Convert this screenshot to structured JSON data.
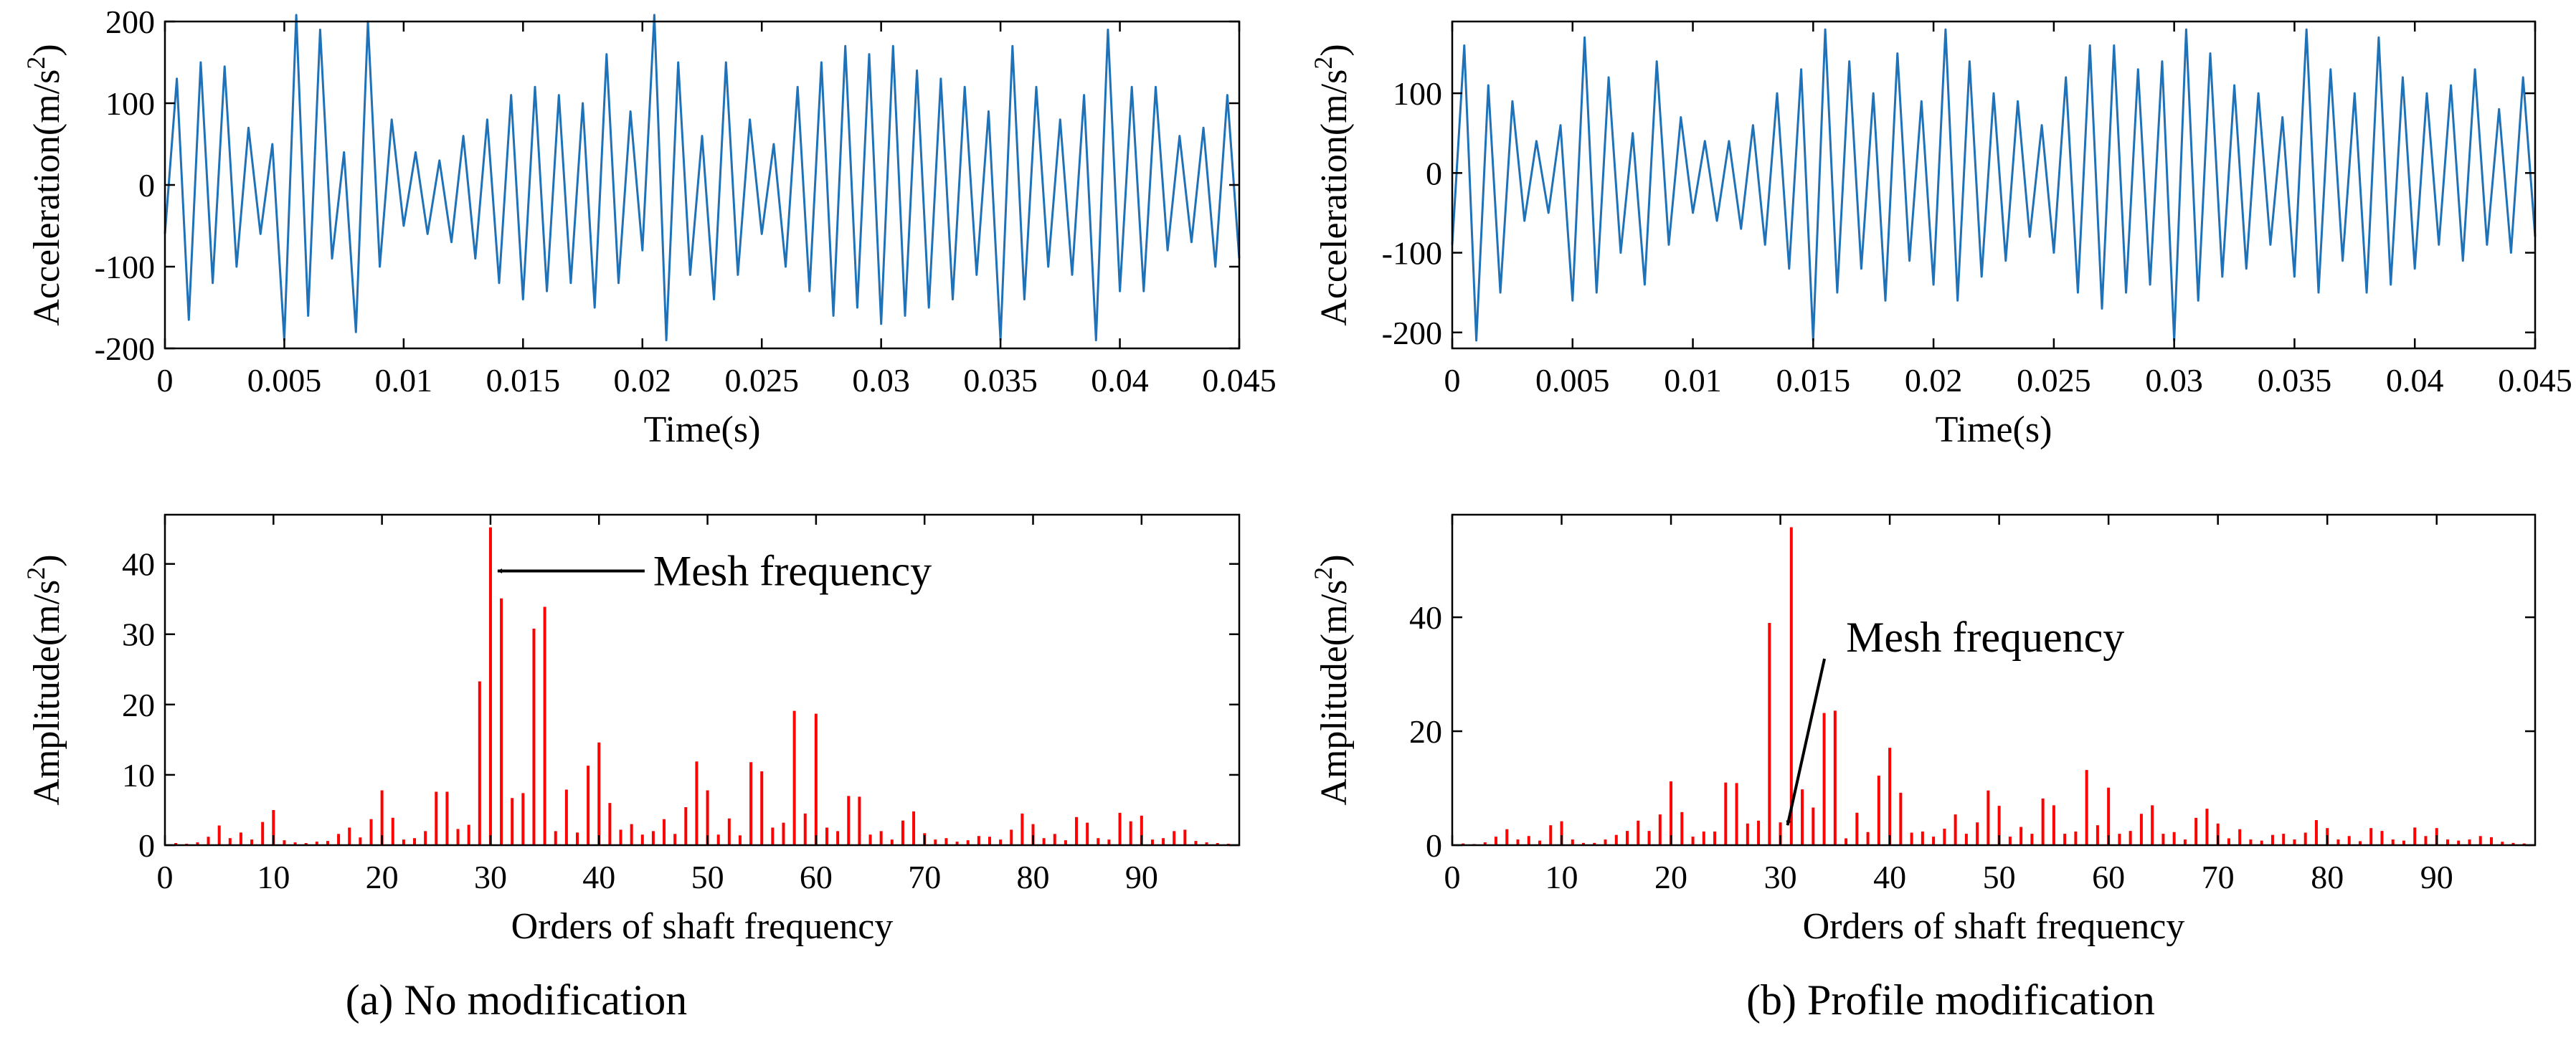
{
  "figure": {
    "captions": [
      "(a) No modification",
      "(b) Profile modification"
    ],
    "colors": {
      "time_line": "#1f72b8",
      "spectrum_bar": "#ff0000",
      "axis": "#000000"
    }
  },
  "chart_data": [
    {
      "id": "a-time",
      "type": "line",
      "title": "",
      "xlabel": "Time(s)",
      "ylabel": "Acceleration(m/s^2)",
      "ylabel_main": "Acceleration(m/s",
      "ylabel_sup": "2",
      "ylabel_close": ")",
      "xlim": [
        0,
        0.045
      ],
      "ylim": [
        -200,
        200
      ],
      "xticks": [
        "0",
        "0.005",
        "0.01",
        "0.015",
        "0.02",
        "0.025",
        "0.03",
        "0.035",
        "0.04",
        "0.045"
      ],
      "xtick_values": [
        0,
        0.005,
        0.01,
        0.015,
        0.02,
        0.025,
        0.03,
        0.035,
        0.04,
        0.045
      ],
      "yticks": [
        "-200",
        "-100",
        "0",
        "100",
        "200"
      ],
      "ytick_values": [
        -200,
        -100,
        0,
        100,
        200
      ],
      "series": [
        {
          "name": "vibration acceleration",
          "color": "#1f72b8",
          "x": [
            0,
            0.0005,
            0.001,
            0.0015,
            0.002,
            0.0025,
            0.003,
            0.0035,
            0.004,
            0.0045,
            0.005,
            0.0055,
            0.006,
            0.0065,
            0.007,
            0.0075,
            0.008,
            0.0085,
            0.009,
            0.0095,
            0.01,
            0.0105,
            0.011,
            0.0115,
            0.012,
            0.0125,
            0.013,
            0.0135,
            0.014,
            0.0145,
            0.015,
            0.0155,
            0.016,
            0.0165,
            0.017,
            0.0175,
            0.018,
            0.0185,
            0.019,
            0.0195,
            0.02,
            0.0205,
            0.021,
            0.0215,
            0.022,
            0.0225,
            0.023,
            0.0235,
            0.024,
            0.0245,
            0.025,
            0.0255,
            0.026,
            0.0265,
            0.027,
            0.0275,
            0.028,
            0.0285,
            0.029,
            0.0295,
            0.03,
            0.0305,
            0.031,
            0.0315,
            0.032,
            0.0325,
            0.033,
            0.0335,
            0.034,
            0.0345,
            0.035,
            0.0355,
            0.036,
            0.0365,
            0.037,
            0.0375,
            0.038,
            0.0385,
            0.039,
            0.0395,
            0.04,
            0.0405,
            0.041,
            0.0415,
            0.042,
            0.0425,
            0.043,
            0.0435,
            0.044,
            0.0445,
            0.045
          ],
          "values": [
            -60,
            130,
            -165,
            150,
            -120,
            145,
            -100,
            70,
            -60,
            50,
            -190,
            208,
            -160,
            190,
            -90,
            40,
            -180,
            200,
            -100,
            80,
            -50,
            40,
            -60,
            30,
            -70,
            60,
            -90,
            80,
            -120,
            110,
            -140,
            120,
            -130,
            110,
            -120,
            100,
            -150,
            160,
            -120,
            90,
            -80,
            208,
            -190,
            150,
            -110,
            60,
            -140,
            150,
            -110,
            80,
            -60,
            50,
            -100,
            120,
            -130,
            150,
            -160,
            170,
            -150,
            160,
            -170,
            170,
            -160,
            140,
            -150,
            130,
            -140,
            120,
            -110,
            90,
            -190,
            170,
            -140,
            120,
            -100,
            80,
            -110,
            110,
            -190,
            190,
            -130,
            120,
            -130,
            120,
            -80,
            60,
            -70,
            70,
            -100,
            110,
            -90
          ]
        }
      ]
    },
    {
      "id": "b-time",
      "type": "line",
      "title": "",
      "xlabel": "Time(s)",
      "ylabel": "Acceleration(m/s^2)",
      "ylabel_main": "Acceleration(m/s",
      "ylabel_sup": "2",
      "ylabel_close": ")",
      "xlim": [
        0,
        0.045
      ],
      "ylim": [
        -220,
        190
      ],
      "xticks": [
        "0",
        "0.005",
        "0.01",
        "0.015",
        "0.02",
        "0.025",
        "0.03",
        "0.035",
        "0.04",
        "0.045"
      ],
      "xtick_values": [
        0,
        0.005,
        0.01,
        0.015,
        0.02,
        0.025,
        0.03,
        0.035,
        0.04,
        0.045
      ],
      "yticks": [
        "-200",
        "-100",
        "0",
        "100"
      ],
      "ytick_values": [
        -200,
        -100,
        0,
        100
      ],
      "series": [
        {
          "name": "vibration acceleration",
          "color": "#1f72b8",
          "x": [
            0,
            0.0005,
            0.001,
            0.0015,
            0.002,
            0.0025,
            0.003,
            0.0035,
            0.004,
            0.0045,
            0.005,
            0.0055,
            0.006,
            0.0065,
            0.007,
            0.0075,
            0.008,
            0.0085,
            0.009,
            0.0095,
            0.01,
            0.0105,
            0.011,
            0.0115,
            0.012,
            0.0125,
            0.013,
            0.0135,
            0.014,
            0.0145,
            0.015,
            0.0155,
            0.016,
            0.0165,
            0.017,
            0.0175,
            0.018,
            0.0185,
            0.019,
            0.0195,
            0.02,
            0.0205,
            0.021,
            0.0215,
            0.022,
            0.0225,
            0.023,
            0.0235,
            0.024,
            0.0245,
            0.025,
            0.0255,
            0.026,
            0.0265,
            0.027,
            0.0275,
            0.028,
            0.0285,
            0.029,
            0.0295,
            0.03,
            0.0305,
            0.031,
            0.0315,
            0.032,
            0.0325,
            0.033,
            0.0335,
            0.034,
            0.0345,
            0.035,
            0.0355,
            0.036,
            0.0365,
            0.037,
            0.0375,
            0.038,
            0.0385,
            0.039,
            0.0395,
            0.04,
            0.0405,
            0.041,
            0.0415,
            0.042,
            0.0425,
            0.043,
            0.0435,
            0.044,
            0.0445,
            0.045
          ],
          "values": [
            -90,
            160,
            -210,
            110,
            -150,
            90,
            -60,
            40,
            -50,
            60,
            -160,
            170,
            -150,
            120,
            -100,
            50,
            -140,
            140,
            -90,
            70,
            -50,
            40,
            -60,
            40,
            -70,
            60,
            -90,
            100,
            -120,
            130,
            -210,
            180,
            -150,
            140,
            -120,
            100,
            -160,
            150,
            -110,
            90,
            -140,
            180,
            -160,
            140,
            -130,
            100,
            -110,
            90,
            -80,
            60,
            -100,
            120,
            -150,
            160,
            -170,
            160,
            -150,
            130,
            -140,
            140,
            -210,
            180,
            -160,
            150,
            -130,
            110,
            -120,
            100,
            -90,
            70,
            -130,
            180,
            -150,
            130,
            -110,
            100,
            -150,
            170,
            -140,
            120,
            -120,
            100,
            -90,
            110,
            -110,
            130,
            -90,
            80,
            -100,
            120,
            -80
          ]
        }
      ]
    },
    {
      "id": "a-spectrum",
      "type": "bar",
      "title": "",
      "xlabel": "Orders of shaft frequency",
      "ylabel": "Amplitude(m/s^2)",
      "ylabel_main": "Amplitude(m/s",
      "ylabel_sup": "2",
      "ylabel_close": ")",
      "xlim": [
        0,
        99
      ],
      "ylim": [
        0,
        47
      ],
      "xticks": [
        "0",
        "10",
        "20",
        "30",
        "40",
        "50",
        "60",
        "70",
        "80",
        "90"
      ],
      "xtick_values": [
        0,
        10,
        20,
        30,
        40,
        50,
        60,
        70,
        80,
        90
      ],
      "yticks": [
        "0",
        "10",
        "20",
        "30",
        "40"
      ],
      "ytick_values": [
        0,
        10,
        20,
        30,
        40
      ],
      "annotation": {
        "text": "Mesh frequency",
        "target_order": 30,
        "target_value": 39,
        "text_order": 45,
        "text_value": 39
      },
      "series": [
        {
          "name": "amplitude",
          "color": "#ff0000",
          "x": [
            1,
            2,
            3,
            4,
            5,
            6,
            7,
            8,
            9,
            10,
            11,
            12,
            13,
            14,
            15,
            16,
            17,
            18,
            19,
            20,
            21,
            22,
            23,
            24,
            25,
            26,
            27,
            28,
            29,
            30,
            31,
            32,
            33,
            34,
            35,
            36,
            37,
            38,
            39,
            40,
            41,
            42,
            43,
            44,
            45,
            46,
            47,
            48,
            49,
            50,
            51,
            52,
            53,
            54,
            55,
            56,
            57,
            58,
            59,
            60,
            61,
            62,
            63,
            64,
            65,
            66,
            67,
            68,
            69,
            70,
            71,
            72,
            73,
            74,
            75,
            76,
            77,
            78,
            79,
            80,
            81,
            82,
            83,
            84,
            85,
            86,
            87,
            88,
            89,
            90,
            91,
            92,
            93,
            94,
            95,
            96,
            97,
            98
          ],
          "values": [
            0.3,
            0.2,
            0.4,
            1.2,
            2.8,
            1.0,
            1.8,
            0.8,
            3.3,
            5.0,
            0.7,
            0.4,
            0.3,
            0.5,
            0.6,
            1.6,
            2.5,
            1.1,
            3.7,
            7.8,
            3.9,
            0.8,
            1.0,
            2.0,
            7.6,
            7.6,
            2.3,
            2.9,
            23.3,
            45.2,
            35.1,
            6.7,
            7.4,
            30.8,
            33.9,
            2.0,
            7.9,
            1.8,
            11.3,
            14.6,
            6.0,
            2.2,
            3.0,
            1.5,
            2.0,
            3.7,
            1.6,
            5.4,
            11.9,
            7.8,
            1.5,
            3.8,
            1.4,
            11.8,
            10.5,
            2.5,
            3.2,
            19.1,
            4.5,
            18.7,
            2.5,
            2.0,
            7.0,
            6.9,
            1.5,
            2.0,
            0.8,
            3.5,
            4.8,
            1.7,
            0.8,
            1.0,
            0.5,
            0.7,
            1.3,
            1.2,
            0.8,
            2.2,
            4.5,
            3.0,
            1.0,
            1.6,
            0.7,
            4.0,
            3.2,
            1.0,
            0.8,
            4.6,
            3.4,
            4.2,
            0.8,
            1.0,
            2.0,
            2.2,
            0.6,
            0.4,
            0.3,
            0.2
          ]
        }
      ]
    },
    {
      "id": "b-spectrum",
      "type": "bar",
      "title": "",
      "xlabel": "Orders of shaft frequency",
      "ylabel": "Amplitude(m/s^2)",
      "ylabel_main": "Amplitude(m/s",
      "ylabel_sup": "2",
      "ylabel_close": ")",
      "xlim": [
        0,
        99
      ],
      "ylim": [
        0,
        58
      ],
      "xticks": [
        "0",
        "10",
        "20",
        "30",
        "40",
        "50",
        "60",
        "70",
        "80",
        "90"
      ],
      "xtick_values": [
        0,
        10,
        20,
        30,
        40,
        50,
        60,
        70,
        80,
        90
      ],
      "yticks": [
        "0",
        "20",
        "40"
      ],
      "ytick_values": [
        0,
        20,
        40
      ],
      "annotation": {
        "text": "Mesh frequency",
        "target_order": 30,
        "target_value": 3.5,
        "text_order": 36,
        "text_value": 36.5
      },
      "series": [
        {
          "name": "amplitude",
          "color": "#ff0000",
          "x": [
            1,
            2,
            3,
            4,
            5,
            6,
            7,
            8,
            9,
            10,
            11,
            12,
            13,
            14,
            15,
            16,
            17,
            18,
            19,
            20,
            21,
            22,
            23,
            24,
            25,
            26,
            27,
            28,
            29,
            30,
            31,
            32,
            33,
            34,
            35,
            36,
            37,
            38,
            39,
            40,
            41,
            42,
            43,
            44,
            45,
            46,
            47,
            48,
            49,
            50,
            51,
            52,
            53,
            54,
            55,
            56,
            57,
            58,
            59,
            60,
            61,
            62,
            63,
            64,
            65,
            66,
            67,
            68,
            69,
            70,
            71,
            72,
            73,
            74,
            75,
            76,
            77,
            78,
            79,
            80,
            81,
            82,
            83,
            84,
            85,
            86,
            87,
            88,
            89,
            90,
            91,
            92,
            93,
            94,
            95,
            96,
            97,
            98
          ],
          "values": [
            0.3,
            0.2,
            0.5,
            1.5,
            2.8,
            1.0,
            1.6,
            0.8,
            3.5,
            4.2,
            1.0,
            0.4,
            0.4,
            1.0,
            1.8,
            2.5,
            4.3,
            2.5,
            5.4,
            11.2,
            5.8,
            1.5,
            2.4,
            2.4,
            11.0,
            10.9,
            3.8,
            4.3,
            39.0,
            4.0,
            55.8,
            9.8,
            6.6,
            23.2,
            23.6,
            1.2,
            5.7,
            2.3,
            12.2,
            17.1,
            9.2,
            2.2,
            2.4,
            1.5,
            2.9,
            5.4,
            2.0,
            4.0,
            9.6,
            6.9,
            1.5,
            3.2,
            2.0,
            8.2,
            7.0,
            2.0,
            2.4,
            13.2,
            3.5,
            10.1,
            2.0,
            2.5,
            5.5,
            7.0,
            2.0,
            2.3,
            1.0,
            4.8,
            6.4,
            3.8,
            1.2,
            2.8,
            1.0,
            0.8,
            1.8,
            2.0,
            1.0,
            2.2,
            4.4,
            3.0,
            1.0,
            1.6,
            0.7,
            3.0,
            2.5,
            1.0,
            0.8,
            3.1,
            1.6,
            3.0,
            1.0,
            0.8,
            1.0,
            1.6,
            1.4,
            0.6,
            0.4,
            0.3
          ]
        }
      ]
    }
  ]
}
